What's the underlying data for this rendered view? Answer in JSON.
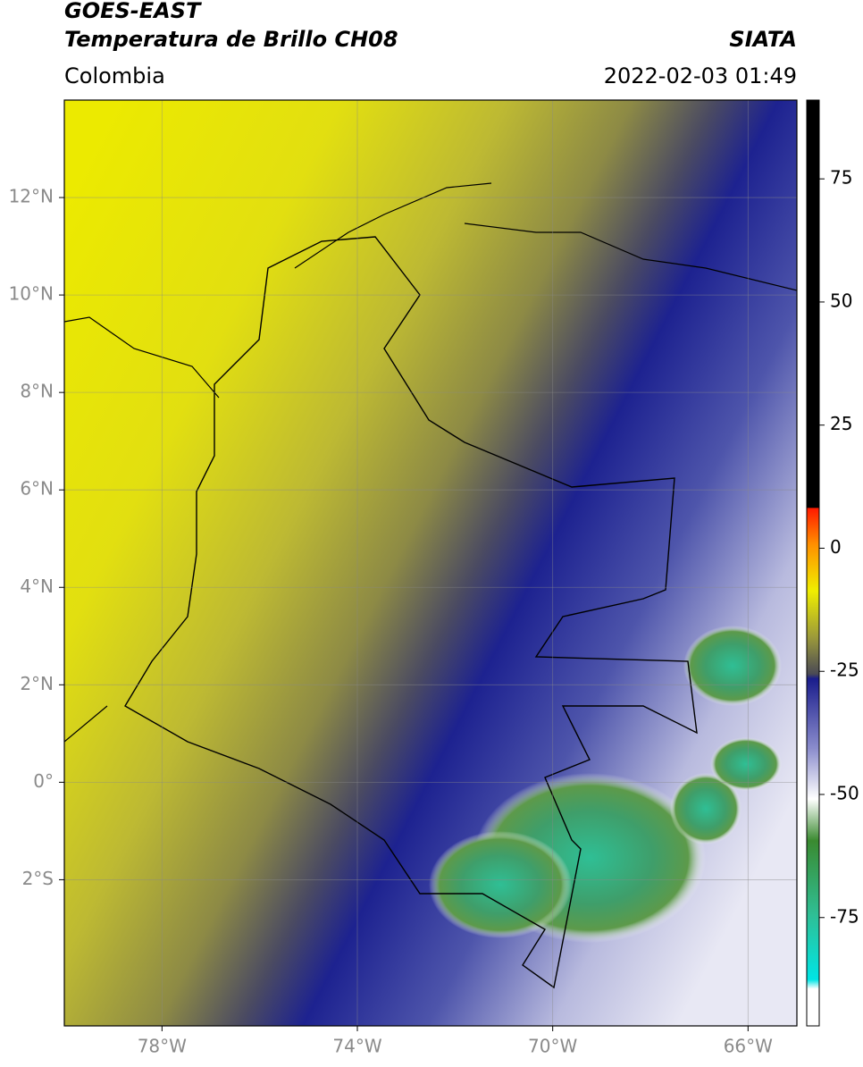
{
  "header": {
    "source": "GOES-EAST",
    "product": "Temperatura de Brillo CH08",
    "region": "Colombia",
    "agency": "SIATA",
    "datetime": "2022-02-03 01:49"
  },
  "map": {
    "lon_range": [
      -80,
      -65
    ],
    "lat_range": [
      -5,
      14
    ],
    "lon_ticks": [
      {
        "value": -78,
        "label": "78°W"
      },
      {
        "value": -74,
        "label": "74°W"
      },
      {
        "value": -70,
        "label": "70°W"
      },
      {
        "value": -66,
        "label": "66°W"
      }
    ],
    "lat_ticks": [
      {
        "value": 12,
        "label": "12°N"
      },
      {
        "value": 10,
        "label": "10°N"
      },
      {
        "value": 8,
        "label": "8°N"
      },
      {
        "value": 6,
        "label": "6°N"
      },
      {
        "value": 4,
        "label": "4°N"
      },
      {
        "value": 2,
        "label": "2°N"
      },
      {
        "value": 0,
        "label": "0°"
      },
      {
        "value": -2,
        "label": "2°S"
      }
    ]
  },
  "colorbar": {
    "range": [
      -97,
      91
    ],
    "ticks": [
      75,
      50,
      25,
      0,
      -25,
      -50,
      -75
    ]
  }
}
